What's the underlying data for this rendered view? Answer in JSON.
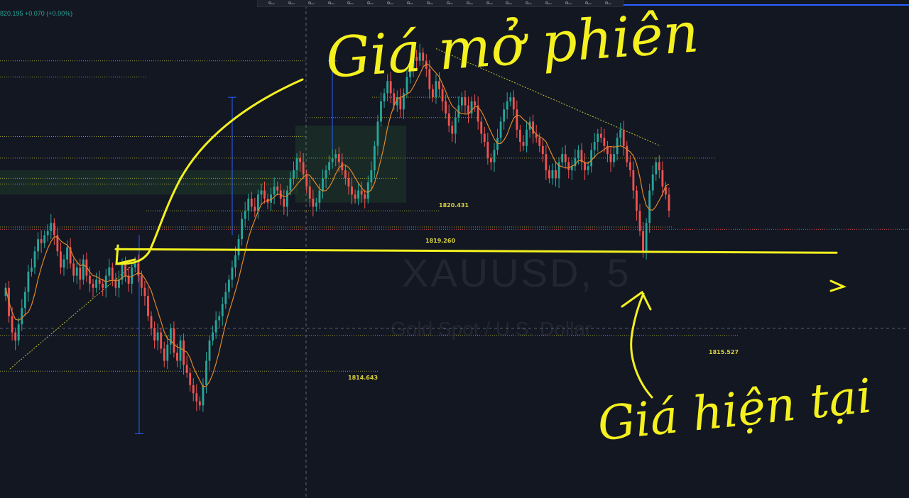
{
  "toolbar": {
    "tools": [
      "tool-1",
      "tool-2",
      "tool-3",
      "tool-4",
      "tool-5",
      "tool-6",
      "tool-7",
      "tool-8",
      "tool-9",
      "tool-10",
      "tool-11",
      "tool-12",
      "tool-13",
      "tool-14",
      "tool-15",
      "tool-16",
      "tool-17",
      "tool-18"
    ]
  },
  "legend": {
    "ohlc_text": "820.195 +0.070 (+0.00%)"
  },
  "watermark": {
    "symbol": "XAUUSD, 5",
    "description": "Gold Spot / U.S. Dollar"
  },
  "price_labels": [
    {
      "text": "1820.431"
    },
    {
      "text": "1819.260"
    },
    {
      "text": "1815.527"
    },
    {
      "text": "1814.643"
    }
  ],
  "annotations": {
    "open_price": "Giá mở phiên",
    "current_price": "Giá hiện tại"
  },
  "colors": {
    "background": "#131722",
    "up": "#26a69a",
    "down": "#ef5350",
    "ma": "#e0882a",
    "annotation": "#f4f11f",
    "level": "#c8c63a",
    "measure": "#2962ff"
  },
  "chart_data": {
    "type": "candlestick",
    "symbol": "XAUUSD",
    "interval": "5",
    "ylim": [
      1812.6,
      1823.1
    ],
    "levels": [
      1822.3,
      1821.9,
      1821.4,
      1820.9,
      1820.431,
      1819.9,
      1819.4,
      1819.26,
      1818.6,
      1818.2,
      1817.6,
      1815.527,
      1814.643
    ],
    "opening_price": 1817.6,
    "current_price": 1817.6,
    "close": [
      1816.7,
      1816.0,
      1815.6,
      1815.4,
      1815.8,
      1816.2,
      1816.6,
      1817.1,
      1817.2,
      1817.6,
      1817.9,
      1817.8,
      1818.0,
      1818.1,
      1818.3,
      1818.0,
      1817.6,
      1817.2,
      1817.4,
      1817.7,
      1817.3,
      1817.0,
      1817.2,
      1816.9,
      1817.4,
      1817.0,
      1816.8,
      1816.7,
      1816.9,
      1816.8,
      1816.7,
      1817.0,
      1817.2,
      1816.9,
      1816.7,
      1816.9,
      1817.3,
      1817.0,
      1816.8,
      1817.2,
      1817.3,
      1817.0,
      1816.7,
      1816.5,
      1816.0,
      1815.7,
      1815.4,
      1815.6,
      1815.2,
      1814.9,
      1815.3,
      1815.7,
      1815.1,
      1814.9,
      1815.4,
      1814.8,
      1814.6,
      1814.3,
      1814.1,
      1813.9,
      1813.8,
      1814.3,
      1814.9,
      1815.4,
      1815.6,
      1815.9,
      1816.0,
      1816.3,
      1816.6,
      1816.9,
      1817.2,
      1817.5,
      1817.9,
      1818.4,
      1818.6,
      1818.9,
      1818.7,
      1818.6,
      1819.0,
      1819.1,
      1818.9,
      1818.8,
      1819.0,
      1819.2,
      1819.1,
      1818.9,
      1818.7,
      1819.1,
      1819.4,
      1819.6,
      1819.9,
      1819.8,
      1819.5,
      1819.2,
      1818.9,
      1818.7,
      1818.8,
      1819.1,
      1819.4,
      1819.6,
      1819.8,
      1819.9,
      1820.0,
      1819.8,
      1819.6,
      1819.4,
      1819.2,
      1819.0,
      1818.9,
      1819.1,
      1819.0,
      1818.9,
      1819.3,
      1819.6,
      1820.2,
      1820.8,
      1821.3,
      1821.5,
      1821.8,
      1821.5,
      1821.2,
      1821.4,
      1821.1,
      1821.5,
      1821.9,
      1822.1,
      1822.4,
      1822.3,
      1822.5,
      1822.3,
      1822.1,
      1821.6,
      1821.4,
      1821.8,
      1821.6,
      1821.3,
      1821.0,
      1820.7,
      1820.5,
      1820.9,
      1821.2,
      1821.4,
      1821.2,
      1821.0,
      1821.3,
      1821.2,
      1820.8,
      1820.5,
      1820.3,
      1819.9,
      1819.8,
      1820.1,
      1820.4,
      1820.8,
      1821.1,
      1821.3,
      1821.4,
      1821.1,
      1820.6,
      1820.3,
      1820.2,
      1820.6,
      1820.8,
      1820.5,
      1820.4,
      1820.2,
      1820.0,
      1819.6,
      1819.4,
      1819.6,
      1819.4,
      1819.8,
      1820.0,
      1819.8,
      1819.6,
      1819.7,
      1819.9,
      1820.1,
      1819.8,
      1819.6,
      1819.7,
      1820.1,
      1820.3,
      1820.5,
      1820.4,
      1820.2,
      1820.0,
      1819.8,
      1820.0,
      1820.4,
      1820.6,
      1820.2,
      1819.8,
      1819.6,
      1819.1,
      1818.6,
      1818.1,
      1817.6,
      1818.3,
      1819.1,
      1819.5,
      1819.8,
      1819.6,
      1819.2,
      1819.0,
      1818.6
    ]
  }
}
